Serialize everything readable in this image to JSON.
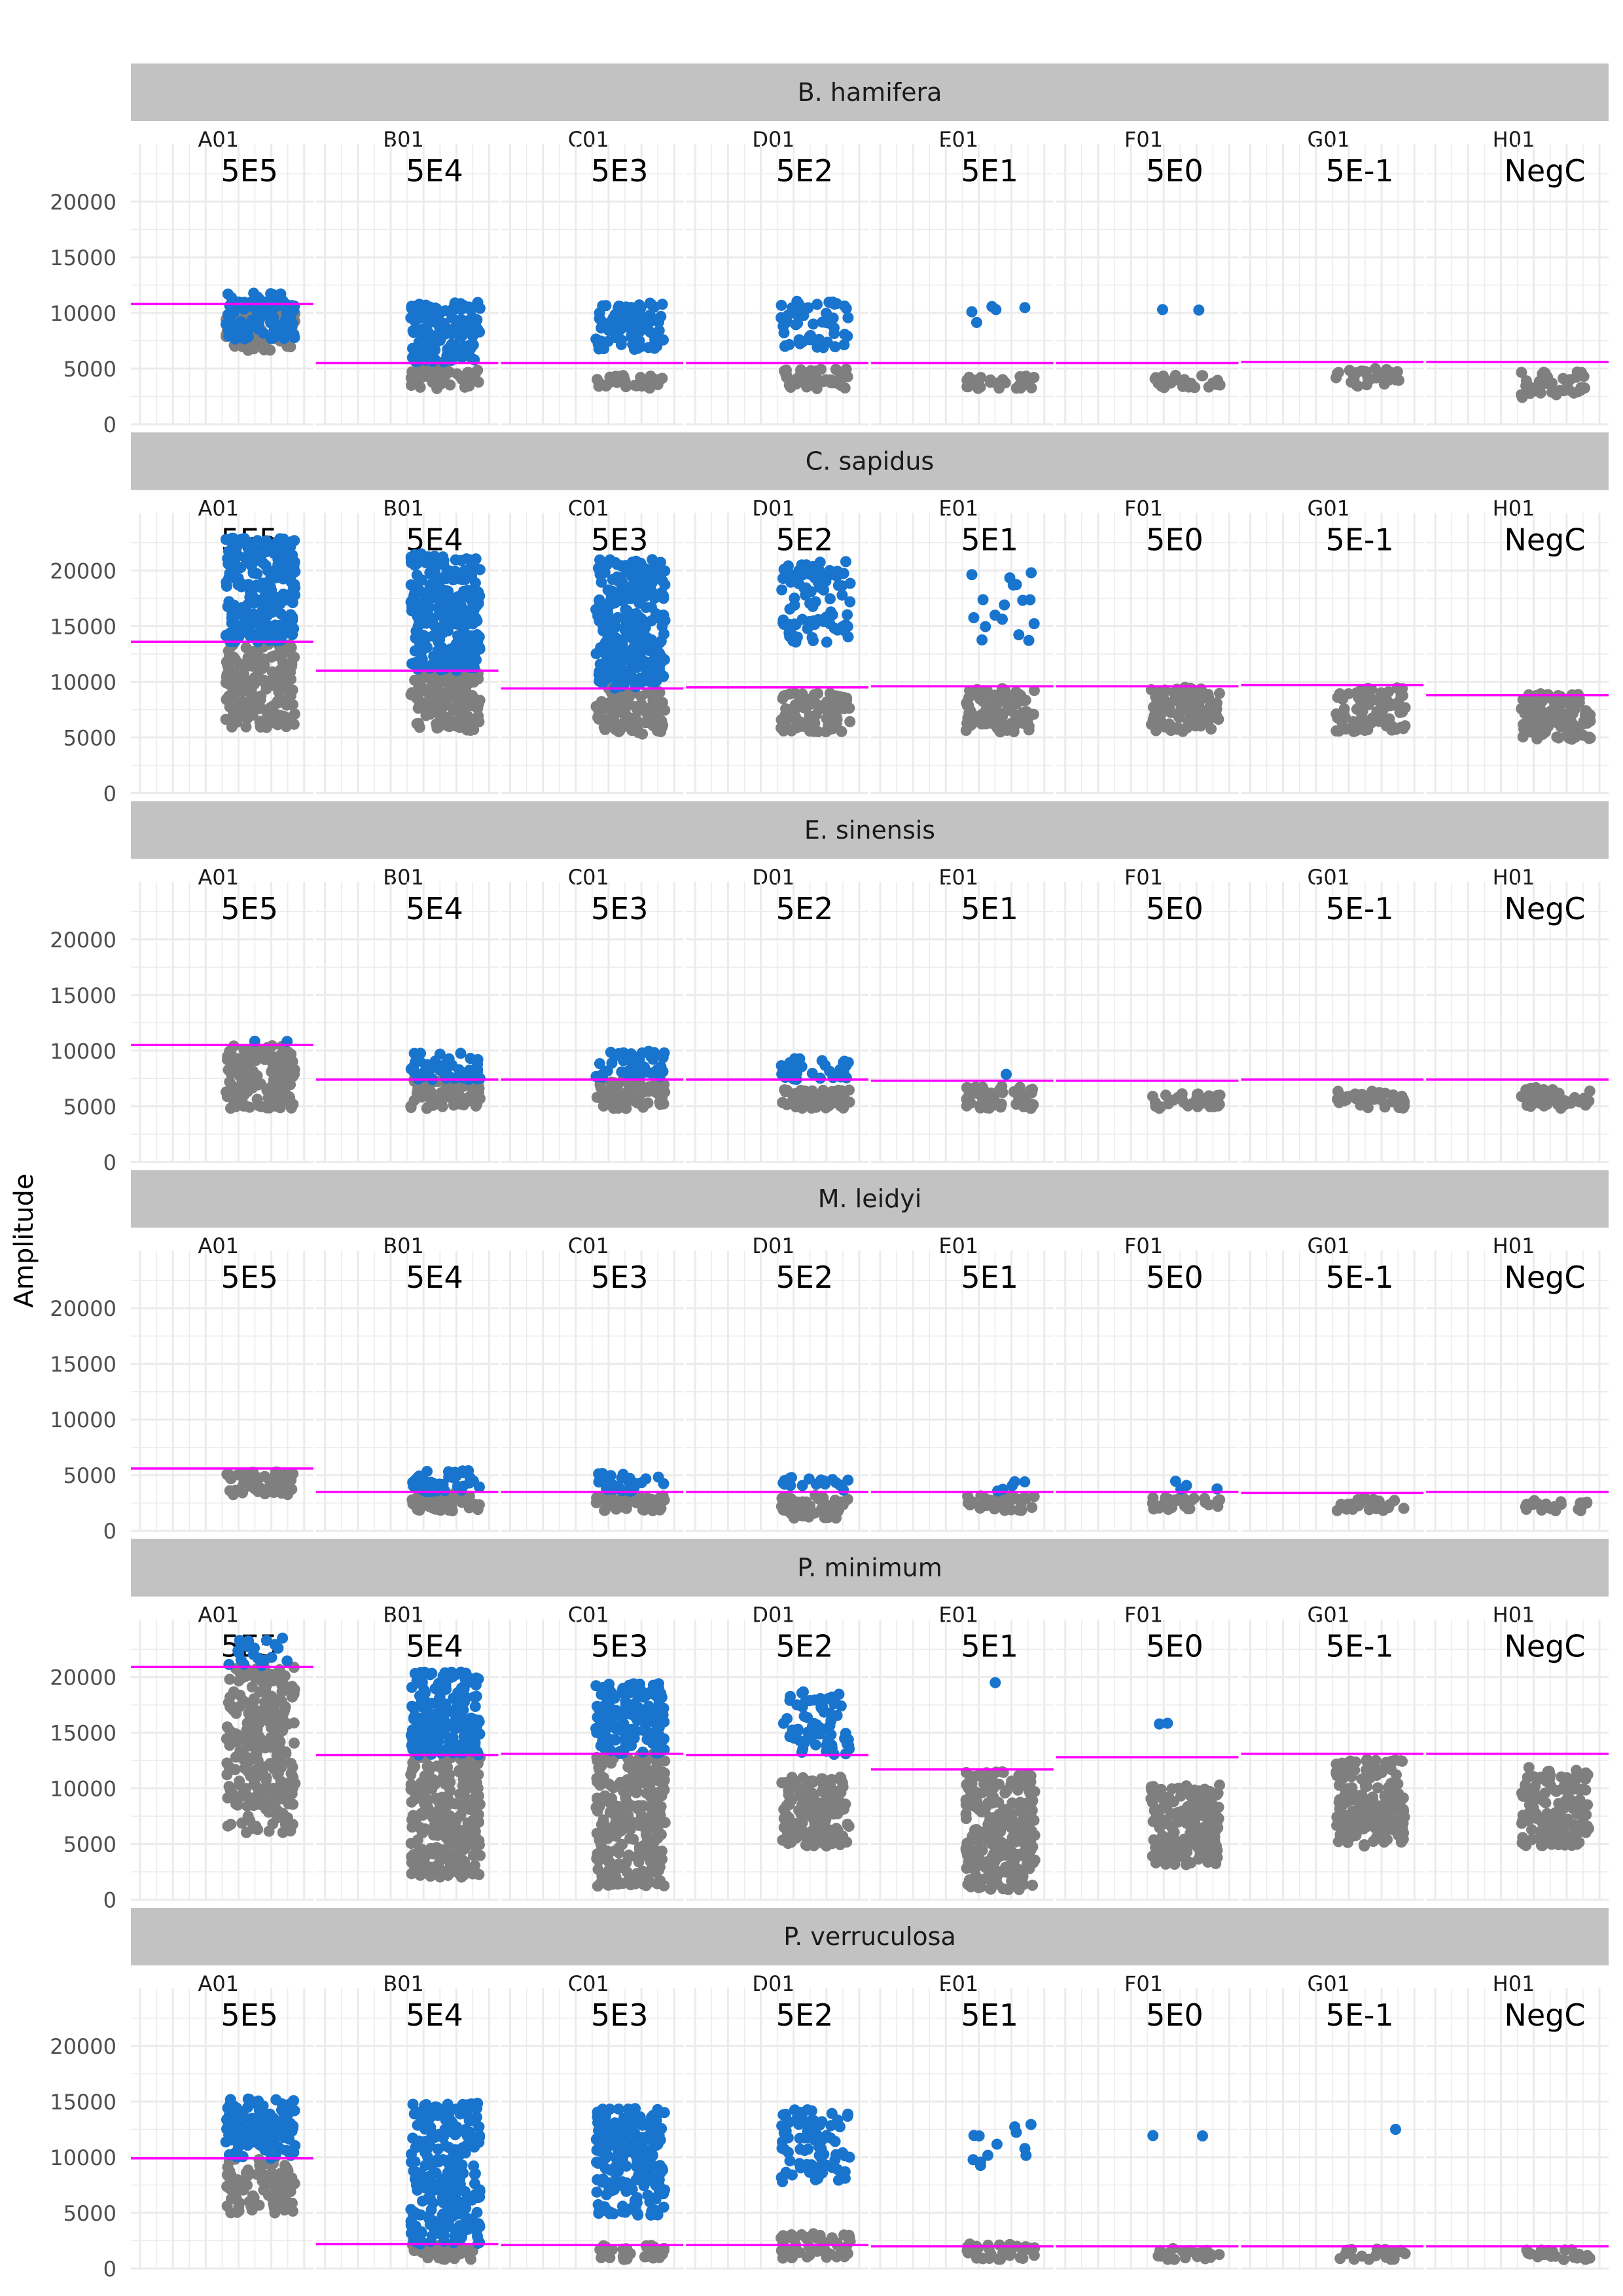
{
  "chart_data": {
    "type": "scatter",
    "subtitle": "",
    "ylabel": "Amplitude",
    "xlabel": "",
    "ylim": [
      0,
      24000
    ],
    "y_ticks": [
      0,
      5000,
      10000,
      15000,
      20000
    ],
    "y_tick_labels": [
      "0",
      "5000",
      "10000",
      "15000",
      "20000"
    ],
    "columns": [
      "A01",
      "B01",
      "C01",
      "D01",
      "E01",
      "F01",
      "G01",
      "H01"
    ],
    "column_labels": [
      "5E5",
      "5E4",
      "5E3",
      "5E2",
      "5E1",
      "5E0",
      "5E-1",
      "NegC"
    ],
    "grid": true,
    "legend": "none",
    "colors": {
      "positive": "#1874CD",
      "negative": "#7F7F7F",
      "threshold": "#FF00FF",
      "strip": "#C2C2C2",
      "grid": "#EBEBEB"
    },
    "panels": [
      {
        "species": "B. hamifera",
        "wells": [
          {
            "well": "A01",
            "threshold": 10800,
            "pos_range": [
              7600,
              11800
            ],
            "pos_density": 1.0,
            "neg_range": [
              6600,
              10800
            ],
            "neg_density": 1.0
          },
          {
            "well": "B01",
            "threshold": 5500,
            "pos_range": [
              5600,
              11000
            ],
            "pos_density": 1.0,
            "neg_range": [
              3200,
              5000
            ],
            "neg_density": 1.0
          },
          {
            "well": "C01",
            "threshold": 5500,
            "pos_range": [
              6700,
              10900
            ],
            "pos_density": 0.8,
            "neg_range": [
              3200,
              4400
            ],
            "neg_density": 0.8
          },
          {
            "well": "D01",
            "threshold": 5500,
            "pos_range": [
              6800,
              11200
            ],
            "pos_density": 0.5,
            "neg_range": [
              3200,
              5000
            ],
            "neg_density": 0.8
          },
          {
            "well": "E01",
            "threshold": 5500,
            "pos_range": [
              8800,
              10600
            ],
            "pos_density": 0.1,
            "neg_range": [
              3200,
              4400
            ],
            "neg_density": 0.7
          },
          {
            "well": "F01",
            "threshold": 5500,
            "pos_range": [
              10100,
              10300
            ],
            "pos_density": 0.02,
            "neg_range": [
              3200,
              4400
            ],
            "neg_density": 0.7
          },
          {
            "well": "G01",
            "threshold": 5600,
            "pos_range": null,
            "pos_density": 0,
            "neg_range": [
              3400,
              5000
            ],
            "neg_density": 0.7
          },
          {
            "well": "H01",
            "threshold": 5600,
            "pos_range": null,
            "pos_density": 0,
            "neg_range": [
              2400,
              4700
            ],
            "neg_density": 0.7
          }
        ]
      },
      {
        "species": "C. sapidus",
        "wells": [
          {
            "well": "A01",
            "threshold": 13600,
            "pos_range": [
              13600,
              23000
            ],
            "pos_density": 1.0,
            "neg_range": [
              5800,
              13600
            ],
            "neg_density": 1.0
          },
          {
            "well": "B01",
            "threshold": 11000,
            "pos_range": [
              11000,
              21500
            ],
            "pos_density": 1.0,
            "neg_range": [
              5500,
              11000
            ],
            "neg_density": 1.0
          },
          {
            "well": "C01",
            "threshold": 9400,
            "pos_range": [
              9400,
              21000
            ],
            "pos_density": 1.0,
            "neg_range": [
              5300,
              9400
            ],
            "neg_density": 1.0
          },
          {
            "well": "D01",
            "threshold": 9500,
            "pos_range": [
              13500,
              20800
            ],
            "pos_density": 0.5,
            "neg_range": [
              5500,
              9000
            ],
            "neg_density": 1.0
          },
          {
            "well": "E01",
            "threshold": 9600,
            "pos_range": [
              13500,
              20500
            ],
            "pos_density": 0.1,
            "neg_range": [
              5500,
              9400
            ],
            "neg_density": 1.0
          },
          {
            "well": "F01",
            "threshold": 9600,
            "pos_range": null,
            "pos_density": 0,
            "neg_range": [
              5500,
              9500
            ],
            "neg_density": 1.0
          },
          {
            "well": "G01",
            "threshold": 9700,
            "pos_range": null,
            "pos_density": 0,
            "neg_range": [
              5500,
              9500
            ],
            "neg_density": 0.9
          },
          {
            "well": "H01",
            "threshold": 8800,
            "pos_range": null,
            "pos_density": 0,
            "neg_range": [
              4800,
              9000
            ],
            "neg_density": 1.0
          }
        ]
      },
      {
        "species": "E. sinensis",
        "wells": [
          {
            "well": "A01",
            "threshold": 10500,
            "pos_range": [
              10500,
              11000
            ],
            "pos_density": 0.02,
            "neg_range": [
              4800,
              10500
            ],
            "neg_density": 1.0
          },
          {
            "well": "B01",
            "threshold": 7400,
            "pos_range": [
              7400,
              9800
            ],
            "pos_density": 0.8,
            "neg_range": [
              4800,
              7400
            ],
            "neg_density": 1.0
          },
          {
            "well": "C01",
            "threshold": 7400,
            "pos_range": [
              7400,
              10000
            ],
            "pos_density": 0.6,
            "neg_range": [
              4800,
              7400
            ],
            "neg_density": 1.0
          },
          {
            "well": "D01",
            "threshold": 7400,
            "pos_range": [
              7400,
              9400
            ],
            "pos_density": 0.5,
            "neg_range": [
              4800,
              6500
            ],
            "neg_density": 1.0
          },
          {
            "well": "E01",
            "threshold": 7300,
            "pos_range": [
              7700,
              8400
            ],
            "pos_density": 0.05,
            "neg_range": [
              4800,
              6800
            ],
            "neg_density": 1.0
          },
          {
            "well": "F01",
            "threshold": 7300,
            "pos_range": null,
            "pos_density": 0,
            "neg_range": [
              4800,
              6200
            ],
            "neg_density": 0.8
          },
          {
            "well": "G01",
            "threshold": 7400,
            "pos_range": null,
            "pos_density": 0,
            "neg_range": [
              4800,
              6500
            ],
            "neg_density": 0.8
          },
          {
            "well": "H01",
            "threshold": 7400,
            "pos_range": null,
            "pos_density": 0,
            "neg_range": [
              4800,
              6700
            ],
            "neg_density": 0.8
          }
        ]
      },
      {
        "species": "M. leidyi",
        "wells": [
          {
            "well": "A01",
            "threshold": 5600,
            "pos_range": null,
            "pos_density": 0,
            "neg_range": [
              3200,
              5300
            ],
            "neg_density": 1.0
          },
          {
            "well": "B01",
            "threshold": 3500,
            "pos_range": [
              3500,
              5500
            ],
            "pos_density": 0.8,
            "neg_range": [
              1800,
              3400
            ],
            "neg_density": 1.0
          },
          {
            "well": "C01",
            "threshold": 3500,
            "pos_range": [
              3500,
              5200
            ],
            "pos_density": 0.6,
            "neg_range": [
              1800,
              3200
            ],
            "neg_density": 1.0
          },
          {
            "well": "D01",
            "threshold": 3500,
            "pos_range": [
              3500,
              4800
            ],
            "pos_density": 0.4,
            "neg_range": [
              1100,
              3200
            ],
            "neg_density": 1.0
          },
          {
            "well": "E01",
            "threshold": 3500,
            "pos_range": [
              3500,
              4500
            ],
            "pos_density": 0.15,
            "neg_range": [
              1800,
              3200
            ],
            "neg_density": 0.8
          },
          {
            "well": "F01",
            "threshold": 3500,
            "pos_range": [
              3700,
              4500
            ],
            "pos_density": 0.04,
            "neg_range": [
              1800,
              3000
            ],
            "neg_density": 0.8
          },
          {
            "well": "G01",
            "threshold": 3400,
            "pos_range": null,
            "pos_density": 0,
            "neg_range": [
              1800,
              2900
            ],
            "neg_density": 0.7
          },
          {
            "well": "H01",
            "threshold": 3500,
            "pos_range": null,
            "pos_density": 0,
            "neg_range": [
              1800,
              2800
            ],
            "neg_density": 0.7
          }
        ]
      },
      {
        "species": "P. minimum",
        "wells": [
          {
            "well": "A01",
            "threshold": 20900,
            "pos_range": [
              20900,
              23500
            ],
            "pos_density": 0.3,
            "neg_range": [
              6000,
              20900
            ],
            "neg_density": 1.0
          },
          {
            "well": "B01",
            "threshold": 13000,
            "pos_range": [
              13000,
              20500
            ],
            "pos_density": 1.0,
            "neg_range": [
              2000,
              13000
            ],
            "neg_density": 1.0
          },
          {
            "well": "C01",
            "threshold": 13100,
            "pos_range": [
              13100,
              19500
            ],
            "pos_density": 1.0,
            "neg_range": [
              1200,
              13100
            ],
            "neg_density": 1.0
          },
          {
            "well": "D01",
            "threshold": 13000,
            "pos_range": [
              13000,
              18700
            ],
            "pos_density": 0.5,
            "neg_range": [
              4800,
              11000
            ],
            "neg_density": 1.0
          },
          {
            "well": "E01",
            "threshold": 11700,
            "pos_range": [
              19500,
              19500
            ],
            "pos_density": 0.01,
            "neg_range": [
              900,
              11500
            ],
            "neg_density": 1.0
          },
          {
            "well": "F01",
            "threshold": 12800,
            "pos_range": [
              13000,
              16800
            ],
            "pos_density": 0.02,
            "neg_range": [
              3100,
              10300
            ],
            "neg_density": 1.0
          },
          {
            "well": "G01",
            "threshold": 13100,
            "pos_range": null,
            "pos_density": 0,
            "neg_range": [
              4800,
              12700
            ],
            "neg_density": 0.9
          },
          {
            "well": "H01",
            "threshold": 13100,
            "pos_range": null,
            "pos_density": 0,
            "neg_range": [
              4800,
              11900
            ],
            "neg_density": 0.9
          }
        ]
      },
      {
        "species": "P. verruculosa",
        "wells": [
          {
            "well": "A01",
            "threshold": 9900,
            "pos_range": [
              9900,
              15300
            ],
            "pos_density": 1.0,
            "neg_range": [
              5000,
              9900
            ],
            "neg_density": 0.8
          },
          {
            "well": "B01",
            "threshold": 2200,
            "pos_range": [
              2200,
              14900
            ],
            "pos_density": 1.0,
            "neg_range": [
              800,
              2200
            ],
            "neg_density": 0.8
          },
          {
            "well": "C01",
            "threshold": 2100,
            "pos_range": [
              4800,
              14400
            ],
            "pos_density": 1.0,
            "neg_range": [
              800,
              2100
            ],
            "neg_density": 0.8
          },
          {
            "well": "D01",
            "threshold": 2100,
            "pos_range": [
              7800,
              14300
            ],
            "pos_density": 0.6,
            "neg_range": [
              800,
              3200
            ],
            "neg_density": 0.8
          },
          {
            "well": "E01",
            "threshold": 2000,
            "pos_range": [
              8700,
              13300
            ],
            "pos_density": 0.1,
            "neg_range": [
              800,
              2200
            ],
            "neg_density": 0.8
          },
          {
            "well": "F01",
            "threshold": 2000,
            "pos_range": [
              11700,
              12300
            ],
            "pos_density": 0.02,
            "neg_range": [
              800,
              1800
            ],
            "neg_density": 0.7
          },
          {
            "well": "G01",
            "threshold": 2000,
            "pos_range": [
              12500,
              12500
            ],
            "pos_density": 0.01,
            "neg_range": [
              800,
              1800
            ],
            "neg_density": 0.7
          },
          {
            "well": "H01",
            "threshold": 2000,
            "pos_range": null,
            "pos_density": 0,
            "neg_range": [
              800,
              1700
            ],
            "neg_density": 0.7
          }
        ]
      }
    ]
  }
}
